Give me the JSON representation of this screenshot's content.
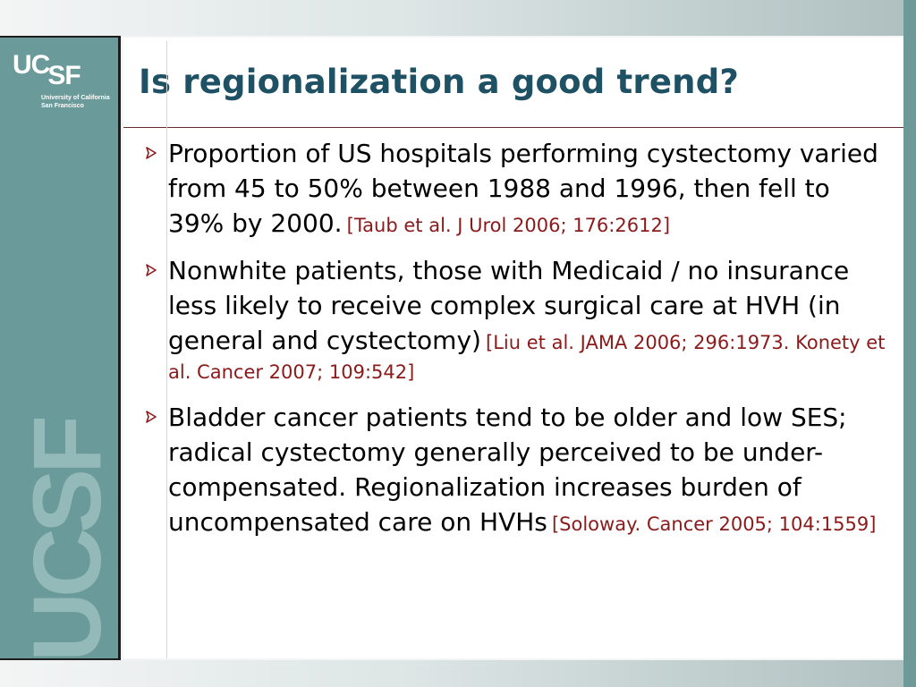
{
  "logo": {
    "mark_uc": "UC",
    "mark_sf": "SF",
    "line1": "University of California",
    "line2": "San Francisco",
    "watermark": "UCSF"
  },
  "slide": {
    "title": "Is regionalization a good trend?",
    "bullets": [
      {
        "text": "Proportion of US hospitals performing cystectomy varied from 45 to 50% between 1988 and 1996, then fell to 39% by 2000.",
        "citation": "[Taub et al. J Urol 2006; 176:2612]"
      },
      {
        "text": "Nonwhite patients, those with Medicaid / no insurance less likely to receive complex surgical care at HVH (in general and cystectomy)",
        "citation": "[Liu et al. JAMA 2006; 296:1973. Konety et al. Cancer 2007; 109:542]"
      },
      {
        "text": "Bladder cancer patients tend to be older and low SES; radical cystectomy generally perceived to be under-compensated. Regionalization increases burden of uncompensated care on HVHs",
        "citation": "[Soloway. Cancer 2005; 104:1559]"
      }
    ]
  },
  "colors": {
    "title": "#1e5164",
    "citation": "#8b1a1a",
    "sidebar": "#6b9a9a",
    "bullet_arrow": "#8b1a1a"
  },
  "icons": {
    "bullet": "arrowhead-bullet-icon"
  }
}
